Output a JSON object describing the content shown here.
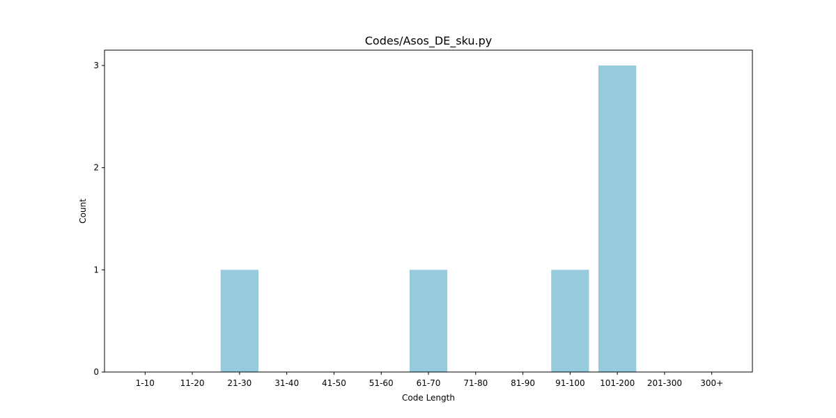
{
  "chart_data": {
    "type": "bar",
    "title": "Codes/Asos_DE_sku.py",
    "xlabel": "Code Length",
    "ylabel": "Count",
    "categories": [
      "1-10",
      "11-20",
      "21-30",
      "31-40",
      "41-50",
      "51-60",
      "61-70",
      "71-80",
      "81-90",
      "91-100",
      "101-200",
      "201-300",
      "300+"
    ],
    "values": [
      0,
      0,
      1,
      0,
      0,
      0,
      1,
      0,
      0,
      1,
      3,
      0,
      0
    ],
    "ylim": [
      0,
      3.15
    ],
    "yticks": [
      "0",
      "1",
      "2",
      "3"
    ],
    "bar_color": "#96cadd",
    "grid": false,
    "legend": "none"
  }
}
